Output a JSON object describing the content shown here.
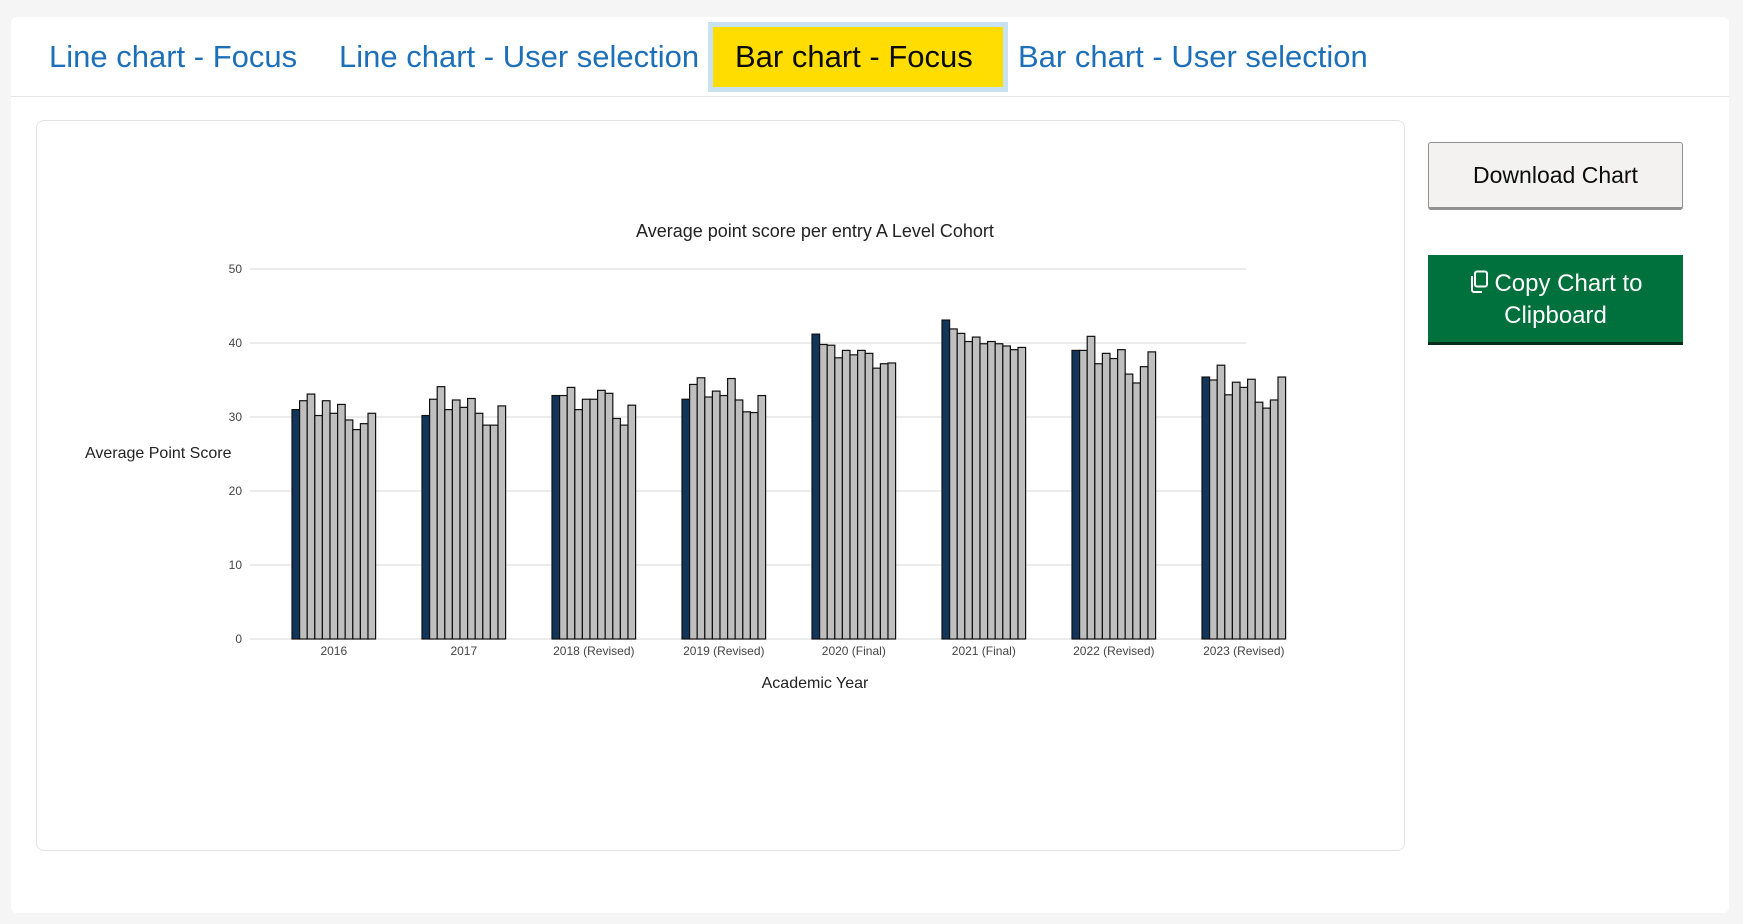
{
  "tabs": [
    {
      "label": "Line chart - Focus",
      "active": false
    },
    {
      "label": "Line chart - User selection",
      "active": false
    },
    {
      "label": "Bar chart - Focus",
      "active": true
    },
    {
      "label": "Bar chart - User selection",
      "active": false
    }
  ],
  "buttons": {
    "download_label": "Download Chart",
    "copy_line1": "Copy Chart to",
    "copy_line2": "Clipboard",
    "copy_icon": "copy-icon"
  },
  "colors": {
    "tab_link": "#1d70b8",
    "tab_active_bg": "#ffdd00",
    "focus_bar": "#12355b",
    "other_bar": "#bfbfbf",
    "copy_button": "#00703c"
  },
  "chart_data": {
    "type": "bar",
    "title": "Average point score per entry A Level Cohort",
    "xlabel": "Academic Year",
    "ylabel": "Average Point Score",
    "ylim": [
      0,
      50
    ],
    "yticks": [
      0,
      10,
      20,
      30,
      40,
      50
    ],
    "grid": true,
    "categories": [
      "2016",
      "2017",
      "2018 (Revised)",
      "2019 (Revised)",
      "2020 (Final)",
      "2021 (Final)",
      "2022 (Revised)",
      "2023 (Revised)"
    ],
    "series": [
      {
        "values": [
          31.0,
          30.2,
          32.9,
          32.4,
          41.2,
          43.1,
          39.0,
          35.4
        ]
      },
      {
        "values": [
          32.2,
          32.4,
          32.9,
          34.4,
          39.8,
          41.9,
          39.0,
          35.0
        ]
      },
      {
        "values": [
          33.1,
          34.1,
          34.0,
          35.3,
          39.7,
          41.3,
          40.9,
          37.0
        ]
      },
      {
        "values": [
          30.2,
          31.0,
          31.0,
          32.7,
          38.0,
          40.2,
          37.2,
          33.0
        ]
      },
      {
        "values": [
          32.2,
          32.3,
          32.4,
          33.5,
          39.0,
          40.8,
          38.6,
          34.7
        ]
      },
      {
        "values": [
          30.5,
          31.3,
          32.4,
          32.9,
          38.4,
          39.9,
          37.9,
          34.0
        ]
      },
      {
        "values": [
          31.7,
          32.5,
          33.6,
          35.2,
          39.0,
          40.2,
          39.1,
          35.1
        ]
      },
      {
        "values": [
          29.6,
          30.5,
          33.2,
          32.3,
          38.6,
          39.9,
          35.8,
          32.0
        ]
      },
      {
        "values": [
          28.3,
          28.9,
          29.8,
          30.7,
          36.6,
          39.6,
          34.6,
          31.2
        ]
      },
      {
        "values": [
          29.1,
          28.9,
          28.9,
          30.6,
          37.2,
          39.1,
          36.8,
          32.3
        ]
      },
      {
        "values": [
          30.5,
          31.5,
          31.6,
          32.9,
          37.3,
          39.4,
          38.8,
          35.4
        ]
      }
    ]
  }
}
